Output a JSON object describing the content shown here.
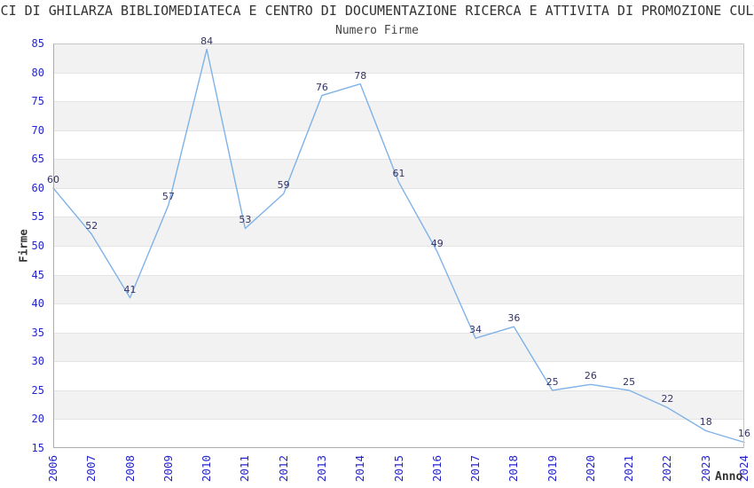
{
  "title": "SCI DI GHILARZA BIBLIOMEDIATECA E CENTRO DI DOCUMENTAZIONE RICERCA E ATTIVITA DI PROMOZIONE CULT",
  "subtitle": "Numero Firme",
  "chart_data": {
    "type": "line",
    "title": "Numero Firme",
    "xlabel": "Anno",
    "ylabel": "Firme",
    "categories": [
      "2006",
      "2007",
      "2008",
      "2009",
      "2010",
      "2011",
      "2012",
      "2013",
      "2014",
      "2015",
      "2016",
      "2017",
      "2018",
      "2019",
      "2020",
      "2021",
      "2022",
      "2023",
      "2024"
    ],
    "series": [
      {
        "name": "Numero Firme",
        "values": [
          60,
          52,
          41,
          57,
          84,
          53,
          59,
          76,
          78,
          61,
          49,
          34,
          36,
          25,
          26,
          25,
          22,
          18,
          16
        ]
      }
    ],
    "ylim": [
      15,
      85
    ],
    "yticks": [
      85,
      80,
      75,
      70,
      65,
      60,
      55,
      50,
      45,
      40,
      35,
      30,
      25,
      20,
      15
    ],
    "ytick_step": 5,
    "grid": "alternating-horizontal-bands",
    "legend": "none",
    "data_labels": true,
    "colors": {
      "line": "#7fb2e8",
      "tick_label": "#2424cc",
      "data_label": "#333366",
      "band": "#f2f2f2",
      "band_border": "#e4e4e4",
      "plot_border": "#c4c4c4",
      "text": "#333333"
    }
  }
}
